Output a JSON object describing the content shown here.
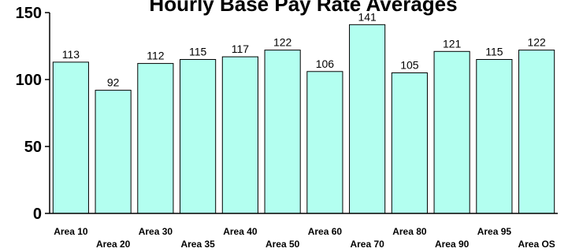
{
  "chart_data": {
    "type": "bar",
    "title": "Hourly Base Pay Rate Averages",
    "xlabel": "",
    "ylabel": "",
    "categories": [
      "Area 10",
      "Area 20",
      "Area 30",
      "Area 35",
      "Area 40",
      "Area 50",
      "Area 60",
      "Area 70",
      "Area 80",
      "Area 90",
      "Area 95",
      "Area OS"
    ],
    "values": [
      113,
      92,
      112,
      115,
      117,
      122,
      106,
      141,
      105,
      121,
      115,
      122
    ],
    "data_labels": [
      "113",
      "92",
      "112",
      "115",
      "117",
      "122",
      "106",
      "141",
      "105",
      "121",
      "115",
      "122"
    ],
    "ylim": [
      0,
      150
    ],
    "yticks": [
      0,
      50,
      100,
      150
    ],
    "ytick_labels": [
      "0",
      "50",
      "100",
      "150"
    ],
    "grid": false,
    "legend": "none",
    "colors": {
      "bar_fill": "#b3fff0",
      "bar_stroke": "#000000",
      "axis": "#000000",
      "background": "#ffffff"
    }
  }
}
